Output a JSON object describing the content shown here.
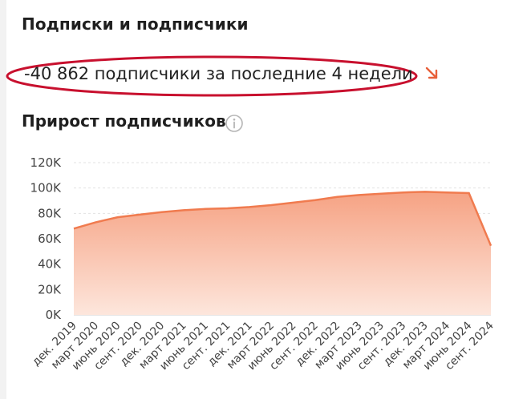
{
  "section_title": "Подписки и подписчики",
  "delta_text": "-40 862 подписчики за последние 4 недели",
  "trend_icon": "arrow-down-right-icon",
  "subtitle": "Прирост подписчиков",
  "info_icon": "info-icon",
  "colors": {
    "accent": "#f07b4f",
    "fill_top": "#f6a283",
    "fill_bottom": "#fde6dc",
    "highlight": "#c8102e",
    "trend": "#e8603a"
  },
  "chart_data": {
    "type": "area",
    "ylim": [
      0,
      120000
    ],
    "y_ticks": [
      "0K",
      "20K",
      "40K",
      "60K",
      "80K",
      "100K",
      "120K"
    ],
    "x_labels": [
      "дек. 2019",
      "март 2020",
      "июнь 2020",
      "сент. 2020",
      "дек. 2020",
      "март 2021",
      "июнь 2021",
      "сент. 2021",
      "дек. 2021",
      "март 2022",
      "июнь 2022",
      "сент. 2022",
      "дек. 2022",
      "март 2023",
      "июнь 2023",
      "сент. 2023",
      "дек. 2023",
      "март 2024",
      "июнь 2024",
      "сент. 2024"
    ],
    "values": [
      68000,
      73000,
      77000,
      79000,
      81000,
      82500,
      83500,
      84000,
      85000,
      86500,
      88500,
      90500,
      93000,
      94500,
      95500,
      96500,
      97000,
      96500,
      96000,
      54500
    ],
    "grid": true
  }
}
